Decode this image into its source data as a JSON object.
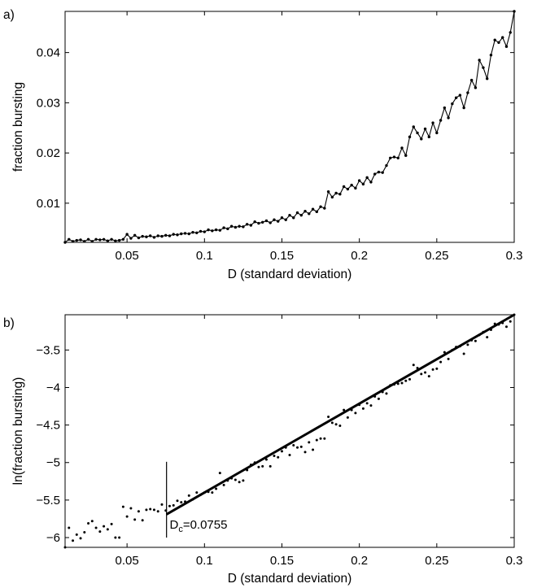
{
  "chart_data": [
    {
      "type": "line",
      "panel_label": "a)",
      "xlabel": "D (standard deviation)",
      "ylabel": "fraction bursting",
      "xlim": [
        0.01,
        0.3
      ],
      "ylim": [
        0.0022,
        0.0482
      ],
      "xticks": [
        0.05,
        0.1,
        0.15,
        0.2,
        0.25,
        0.3
      ],
      "xtick_labels": [
        "0.05",
        "0.1",
        "0.15",
        "0.2",
        "0.25",
        "0.3"
      ],
      "yticks": [
        0.01,
        0.02,
        0.03,
        0.04
      ],
      "ytick_labels": [
        "0.01",
        "0.02",
        "0.03",
        "0.04"
      ],
      "grid": false,
      "series": [
        {
          "marker": "dot",
          "points": [
            [
              0.01,
              0.0022
            ],
            [
              0.0125,
              0.0028
            ],
            [
              0.015,
              0.0024
            ],
            [
              0.0175,
              0.0026
            ],
            [
              0.02,
              0.0027
            ],
            [
              0.0225,
              0.0024
            ],
            [
              0.025,
              0.0028
            ],
            [
              0.0275,
              0.0024
            ],
            [
              0.03,
              0.0028
            ],
            [
              0.0325,
              0.0027
            ],
            [
              0.035,
              0.0028
            ],
            [
              0.0375,
              0.0025
            ],
            [
              0.04,
              0.0028
            ],
            [
              0.0425,
              0.0025
            ],
            [
              0.045,
              0.0026
            ],
            [
              0.0475,
              0.0028
            ],
            [
              0.05,
              0.0038
            ],
            [
              0.0525,
              0.003
            ],
            [
              0.055,
              0.0036
            ],
            [
              0.0575,
              0.0031
            ],
            [
              0.06,
              0.0034
            ],
            [
              0.0625,
              0.0033
            ],
            [
              0.065,
              0.0035
            ],
            [
              0.0675,
              0.0032
            ],
            [
              0.07,
              0.0035
            ],
            [
              0.0725,
              0.0034
            ],
            [
              0.075,
              0.0036
            ],
            [
              0.0775,
              0.0035
            ],
            [
              0.08,
              0.0038
            ],
            [
              0.0825,
              0.0037
            ],
            [
              0.085,
              0.0039
            ],
            [
              0.0875,
              0.004
            ],
            [
              0.09,
              0.0039
            ],
            [
              0.0925,
              0.0042
            ],
            [
              0.095,
              0.0041
            ],
            [
              0.0975,
              0.0044
            ],
            [
              0.1,
              0.0043
            ],
            [
              0.1025,
              0.0047
            ],
            [
              0.105,
              0.0045
            ],
            [
              0.1075,
              0.0047
            ],
            [
              0.11,
              0.0046
            ],
            [
              0.1125,
              0.0051
            ],
            [
              0.115,
              0.0049
            ],
            [
              0.1175,
              0.0054
            ],
            [
              0.12,
              0.0052
            ],
            [
              0.1225,
              0.0054
            ],
            [
              0.125,
              0.0053
            ],
            [
              0.1275,
              0.0058
            ],
            [
              0.13,
              0.0056
            ],
            [
              0.1325,
              0.0063
            ],
            [
              0.135,
              0.006
            ],
            [
              0.1375,
              0.0062
            ],
            [
              0.14,
              0.0065
            ],
            [
              0.1425,
              0.0061
            ],
            [
              0.145,
              0.0067
            ],
            [
              0.1475,
              0.0064
            ],
            [
              0.15,
              0.0071
            ],
            [
              0.1525,
              0.0067
            ],
            [
              0.155,
              0.0076
            ],
            [
              0.1575,
              0.0071
            ],
            [
              0.16,
              0.0081
            ],
            [
              0.1625,
              0.0076
            ],
            [
              0.165,
              0.0084
            ],
            [
              0.1675,
              0.0079
            ],
            [
              0.17,
              0.0088
            ],
            [
              0.1725,
              0.0083
            ],
            [
              0.175,
              0.0093
            ],
            [
              0.1775,
              0.009
            ],
            [
              0.18,
              0.0123
            ],
            [
              0.1825,
              0.0112
            ],
            [
              0.185,
              0.012
            ],
            [
              0.1875,
              0.0118
            ],
            [
              0.19,
              0.0133
            ],
            [
              0.1925,
              0.0128
            ],
            [
              0.195,
              0.0136
            ],
            [
              0.1975,
              0.013
            ],
            [
              0.2,
              0.0145
            ],
            [
              0.2025,
              0.0138
            ],
            [
              0.205,
              0.0151
            ],
            [
              0.2075,
              0.0142
            ],
            [
              0.21,
              0.0158
            ],
            [
              0.2125,
              0.0162
            ],
            [
              0.215,
              0.0161
            ],
            [
              0.2175,
              0.0175
            ],
            [
              0.22,
              0.019
            ],
            [
              0.2225,
              0.0192
            ],
            [
              0.225,
              0.019
            ],
            [
              0.2275,
              0.021
            ],
            [
              0.23,
              0.0195
            ],
            [
              0.2325,
              0.0232
            ],
            [
              0.235,
              0.0252
            ],
            [
              0.2375,
              0.024
            ],
            [
              0.24,
              0.0228
            ],
            [
              0.2425,
              0.0248
            ],
            [
              0.245,
              0.0232
            ],
            [
              0.2475,
              0.026
            ],
            [
              0.25,
              0.024
            ],
            [
              0.2525,
              0.0265
            ],
            [
              0.255,
              0.029
            ],
            [
              0.2575,
              0.027
            ],
            [
              0.26,
              0.0298
            ],
            [
              0.2625,
              0.031
            ],
            [
              0.265,
              0.0315
            ],
            [
              0.2675,
              0.029
            ],
            [
              0.27,
              0.032
            ],
            [
              0.2725,
              0.0345
            ],
            [
              0.275,
              0.033
            ],
            [
              0.2775,
              0.0385
            ],
            [
              0.28,
              0.037
            ],
            [
              0.2825,
              0.0348
            ],
            [
              0.285,
              0.0395
            ],
            [
              0.2875,
              0.0425
            ],
            [
              0.29,
              0.042
            ],
            [
              0.2925,
              0.043
            ],
            [
              0.295,
              0.0412
            ],
            [
              0.2975,
              0.044
            ],
            [
              0.3,
              0.0482
            ]
          ]
        }
      ]
    },
    {
      "type": "scatter",
      "panel_label": "b)",
      "xlabel": "D (standard deviation)",
      "ylabel": "ln(fraction bursting)",
      "xlim": [
        0.01,
        0.3
      ],
      "ylim": [
        -6.13,
        -3.03
      ],
      "xticks": [
        0.05,
        0.1,
        0.15,
        0.2,
        0.25,
        0.3
      ],
      "xtick_labels": [
        "0.05",
        "0.1",
        "0.15",
        "0.2",
        "0.25",
        "0.3"
      ],
      "yticks": [
        -6,
        -5.5,
        -5,
        -4.5,
        -4,
        -3.5
      ],
      "ytick_labels": [
        "−6",
        "−5.5",
        "−5",
        "−4.5",
        "−4",
        "−3.5"
      ],
      "grid": false,
      "fit_line": {
        "x": [
          0.0755,
          0.3
        ],
        "y": [
          -5.69,
          -3.03
        ]
      },
      "critical_line": {
        "x": 0.0755,
        "y": [
          -6.0,
          -4.99
        ]
      },
      "annotation": {
        "text": "D",
        "subscript": "c",
        "value_text": "=0.0755",
        "x": 0.0775,
        "y": -5.88
      },
      "points": [
        [
          0.01,
          -6.13
        ],
        [
          0.0125,
          -5.87
        ],
        [
          0.015,
          -6.04
        ],
        [
          0.0175,
          -5.96
        ],
        [
          0.02,
          -6.01
        ],
        [
          0.0225,
          -5.93
        ],
        [
          0.025,
          -5.81
        ],
        [
          0.0275,
          -5.78
        ],
        [
          0.03,
          -5.87
        ],
        [
          0.0325,
          -5.92
        ],
        [
          0.035,
          -5.85
        ],
        [
          0.0375,
          -5.89
        ],
        [
          0.04,
          -5.82
        ],
        [
          0.0425,
          -6.0
        ],
        [
          0.045,
          -6.0
        ],
        [
          0.0475,
          -5.59
        ],
        [
          0.05,
          -5.72
        ],
        [
          0.0525,
          -5.61
        ],
        [
          0.055,
          -5.76
        ],
        [
          0.0575,
          -5.65
        ],
        [
          0.06,
          -5.77
        ],
        [
          0.0625,
          -5.63
        ],
        [
          0.065,
          -5.62
        ],
        [
          0.0675,
          -5.63
        ],
        [
          0.07,
          -5.65
        ],
        [
          0.0725,
          -5.56
        ],
        [
          0.075,
          -5.64
        ],
        [
          0.0775,
          -5.58
        ],
        [
          0.08,
          -5.57
        ],
        [
          0.0825,
          -5.51
        ],
        [
          0.085,
          -5.53
        ],
        [
          0.0875,
          -5.52
        ],
        [
          0.09,
          -5.44
        ],
        [
          0.0925,
          -5.49
        ],
        [
          0.095,
          -5.4
        ],
        [
          0.0975,
          -5.43
        ],
        [
          0.1,
          -5.4
        ],
        [
          0.1025,
          -5.39
        ],
        [
          0.105,
          -5.4
        ],
        [
          0.1075,
          -5.35
        ],
        [
          0.11,
          -5.14
        ],
        [
          0.1125,
          -5.3
        ],
        [
          0.115,
          -5.24
        ],
        [
          0.1175,
          -5.21
        ],
        [
          0.12,
          -5.23
        ],
        [
          0.1225,
          -5.26
        ],
        [
          0.125,
          -5.24
        ],
        [
          0.1275,
          -5.1
        ],
        [
          0.13,
          -5.03
        ],
        [
          0.1325,
          -5.0
        ],
        [
          0.135,
          -5.06
        ],
        [
          0.1375,
          -5.05
        ],
        [
          0.14,
          -4.96
        ],
        [
          0.1425,
          -5.05
        ],
        [
          0.145,
          -4.91
        ],
        [
          0.1475,
          -4.93
        ],
        [
          0.15,
          -4.85
        ],
        [
          0.1525,
          -4.8
        ],
        [
          0.155,
          -4.9
        ],
        [
          0.1575,
          -4.77
        ],
        [
          0.16,
          -4.8
        ],
        [
          0.1625,
          -4.79
        ],
        [
          0.165,
          -4.86
        ],
        [
          0.1675,
          -4.73
        ],
        [
          0.17,
          -4.83
        ],
        [
          0.1725,
          -4.7
        ],
        [
          0.175,
          -4.68
        ],
        [
          0.1775,
          -4.68
        ],
        [
          0.18,
          -4.39
        ],
        [
          0.1825,
          -4.47
        ],
        [
          0.185,
          -4.49
        ],
        [
          0.1875,
          -4.51
        ],
        [
          0.19,
          -4.3
        ],
        [
          0.1925,
          -4.4
        ],
        [
          0.195,
          -4.3
        ],
        [
          0.1975,
          -4.34
        ],
        [
          0.2,
          -4.23
        ],
        [
          0.2025,
          -4.28
        ],
        [
          0.205,
          -4.21
        ],
        [
          0.2075,
          -4.24
        ],
        [
          0.21,
          -4.12
        ],
        [
          0.2125,
          -4.15
        ],
        [
          0.215,
          -4.06
        ],
        [
          0.2175,
          -4.08
        ],
        [
          0.22,
          -3.97
        ],
        [
          0.2225,
          -3.96
        ],
        [
          0.225,
          -3.95
        ],
        [
          0.2275,
          -3.94
        ],
        [
          0.23,
          -3.91
        ],
        [
          0.2325,
          -3.89
        ],
        [
          0.235,
          -3.7
        ],
        [
          0.2375,
          -3.74
        ],
        [
          0.24,
          -3.82
        ],
        [
          0.2425,
          -3.8
        ],
        [
          0.245,
          -3.85
        ],
        [
          0.2475,
          -3.76
        ],
        [
          0.25,
          -3.75
        ],
        [
          0.2525,
          -3.66
        ],
        [
          0.255,
          -3.53
        ],
        [
          0.2575,
          -3.62
        ],
        [
          0.26,
          -3.5
        ],
        [
          0.2625,
          -3.46
        ],
        [
          0.265,
          -3.45
        ],
        [
          0.2675,
          -3.55
        ],
        [
          0.27,
          -3.43
        ],
        [
          0.2725,
          -3.37
        ],
        [
          0.275,
          -3.38
        ],
        [
          0.2775,
          -3.3
        ],
        [
          0.28,
          -3.26
        ],
        [
          0.2825,
          -3.33
        ],
        [
          0.285,
          -3.23
        ],
        [
          0.2875,
          -3.15
        ],
        [
          0.29,
          -3.16
        ],
        [
          0.2925,
          -3.14
        ],
        [
          0.295,
          -3.19
        ],
        [
          0.2975,
          -3.12
        ],
        [
          0.3,
          -3.03
        ]
      ]
    }
  ]
}
